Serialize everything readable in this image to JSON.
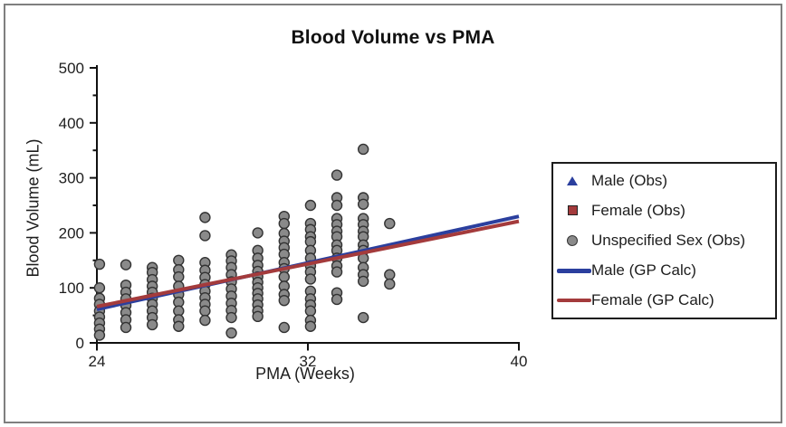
{
  "figure": {
    "border_color": "#7f7f7f",
    "legend_border_color": "#1c1c1c"
  },
  "chart_data": {
    "type": "scatter",
    "title": "Blood Volume vs PMA",
    "xlabel": "PMA (Weeks)",
    "ylabel": "Blood Volume (mL)",
    "xlim": [
      24,
      40
    ],
    "ylim": [
      0,
      500
    ],
    "x_ticks": [
      24,
      32,
      40
    ],
    "y_ticks": [
      0,
      100,
      200,
      300,
      400,
      500
    ],
    "y_minor_step": 50,
    "grid": false,
    "legend_position": "right-outside",
    "series": [
      {
        "name": "Male (Obs)",
        "type": "scatter",
        "marker": "triangle",
        "color": "#2b3f9e",
        "points_by_pma": []
      },
      {
        "name": "Female (Obs)",
        "type": "scatter",
        "marker": "square",
        "color": "#a43b3c",
        "points_by_pma": []
      },
      {
        "name": "Unspecified Sex (Obs)",
        "type": "scatter",
        "marker": "circle",
        "color": "#8a8a8a",
        "edge_color": "#333333",
        "points_by_pma": [
          {
            "pma": 24.1,
            "blood_volume_ml": [
              143,
              100,
              81,
              70,
              58,
              47,
              36,
              25,
              14
            ]
          },
          {
            "pma": 25.1,
            "blood_volume_ml": [
              142,
              105,
              92,
              80,
              68,
              55,
              42,
              28
            ]
          },
          {
            "pma": 26.1,
            "blood_volume_ml": [
              137,
              128,
              115,
              103,
              92,
              81,
              70,
              58,
              46,
              33
            ]
          },
          {
            "pma": 27.1,
            "blood_volume_ml": [
              150,
              133,
              120,
              103,
              88,
              74,
              58,
              42,
              30
            ]
          },
          {
            "pma": 28.1,
            "blood_volume_ml": [
              228,
              195,
              146,
              132,
              119,
              106,
              94,
              82,
              70,
              58,
              41
            ]
          },
          {
            "pma": 29.1,
            "blood_volume_ml": [
              160,
              149,
              137,
              124,
              111,
              98,
              85,
              72,
              59,
              46,
              18
            ]
          },
          {
            "pma": 30.1,
            "blood_volume_ml": [
              200,
              168,
              154,
              141,
              130,
              120,
              110,
              100,
              90,
              80,
              69,
              58,
              48
            ]
          },
          {
            "pma": 31.1,
            "blood_volume_ml": [
              230,
              217,
              199,
              185,
              173,
              161,
              146,
              135,
              120,
              103,
              88,
              77,
              28
            ]
          },
          {
            "pma": 32.1,
            "blood_volume_ml": [
              250,
              217,
              206,
              193,
              184,
              168,
              154,
              140,
              129,
              116,
              94,
              80,
              69,
              58,
              41,
              30
            ]
          },
          {
            "pma": 33.1,
            "blood_volume_ml": [
              305,
              264,
              250,
              226,
              215,
              203,
              193,
              178,
              168,
              154,
              140,
              129,
              91,
              79
            ]
          },
          {
            "pma": 34.1,
            "blood_volume_ml": [
              352,
              264,
              252,
              226,
              215,
              203,
              193,
              178,
              168,
              154,
              137,
              124,
              112,
              46
            ]
          },
          {
            "pma": 35.1,
            "blood_volume_ml": [
              217,
              124,
              107
            ]
          }
        ]
      },
      {
        "name": "Male (GP Calc)",
        "type": "line",
        "color": "#2b3f9e",
        "width": 4,
        "points": [
          [
            24,
            61
          ],
          [
            40,
            230
          ]
        ]
      },
      {
        "name": "Female (GP Calc)",
        "type": "line",
        "color": "#a43b3c",
        "width": 4,
        "points": [
          [
            24,
            66
          ],
          [
            40,
            221
          ]
        ]
      }
    ]
  }
}
